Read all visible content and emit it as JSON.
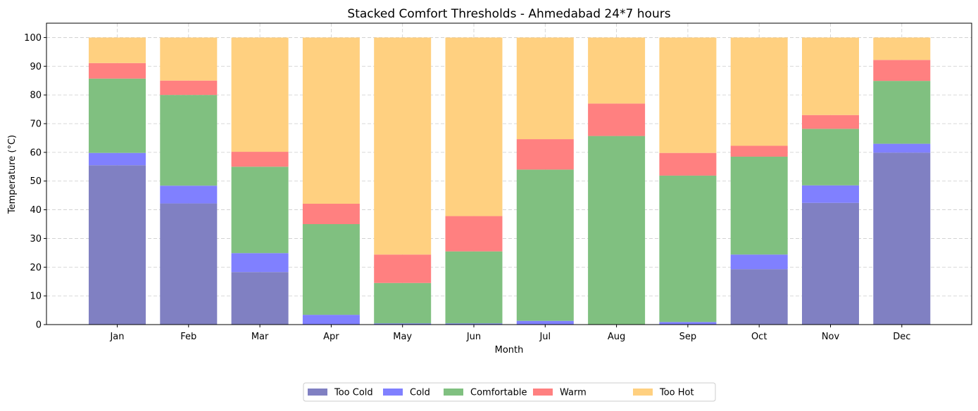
{
  "chart_data": {
    "type": "bar",
    "stacked": true,
    "title": "Stacked Comfort Thresholds - Ahmedabad 24*7 hours",
    "xlabel": "Month",
    "ylabel": "Temperature (°C)",
    "ylim": [
      0,
      105
    ],
    "yticks": [
      0,
      10,
      20,
      30,
      40,
      50,
      60,
      70,
      80,
      90,
      100
    ],
    "grid": true,
    "legend_position": "bottom-center",
    "categories": [
      "Jan",
      "Feb",
      "Mar",
      "Apr",
      "May",
      "Jun",
      "Jul",
      "Aug",
      "Sep",
      "Oct",
      "Nov",
      "Dec"
    ],
    "series": [
      {
        "name": "Too Cold",
        "color": "#8080c2",
        "values": [
          55.5,
          42.2,
          18.3,
          0.0,
          0.0,
          0.0,
          0.0,
          0.0,
          0.0,
          19.3,
          42.4,
          59.9
        ]
      },
      {
        "name": "Cold",
        "color": "#8080ff",
        "values": [
          4.3,
          6.2,
          6.6,
          3.4,
          0.4,
          0.4,
          1.3,
          0.1,
          0.9,
          5.1,
          6.1,
          3.1
        ]
      },
      {
        "name": "Comfortable",
        "color": "#80c080",
        "values": [
          25.9,
          31.6,
          30.1,
          31.6,
          14.1,
          25.1,
          52.7,
          65.6,
          51.0,
          34.1,
          19.7,
          21.9
        ]
      },
      {
        "name": "Warm",
        "color": "#ff8080",
        "values": [
          5.4,
          5.0,
          5.2,
          7.1,
          9.9,
          12.3,
          10.6,
          11.3,
          7.9,
          3.8,
          4.8,
          7.3
        ]
      },
      {
        "name": "Too Hot",
        "color": "#ffd080",
        "values": [
          8.9,
          15.0,
          39.8,
          57.9,
          75.6,
          62.2,
          35.4,
          23.0,
          40.2,
          37.7,
          27.0,
          7.8
        ]
      }
    ]
  }
}
